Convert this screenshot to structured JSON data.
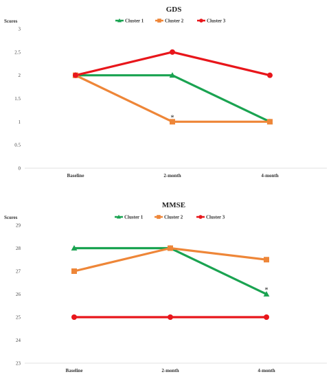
{
  "chart_data": [
    {
      "type": "line",
      "title": "GDS",
      "ylabel": "Scores",
      "xlabel": "",
      "categories": [
        "Baseline",
        "2-month",
        "4-month"
      ],
      "ylim": [
        0,
        3
      ],
      "yticks": [
        "0",
        "0.5",
        "1",
        "1.5",
        "2",
        "2.5",
        "3"
      ],
      "grid": false,
      "legend_position": "top",
      "series": [
        {
          "name": "Cluster 1",
          "values": [
            2,
            2,
            1
          ],
          "color": "#1aa351",
          "marker": "triangle"
        },
        {
          "name": "Cluster 2",
          "values": [
            2,
            1,
            1
          ],
          "color": "#ee8638",
          "marker": "square"
        },
        {
          "name": "Cluster 3",
          "values": [
            2,
            2.5,
            2
          ],
          "color": "#e8161b",
          "marker": "circle"
        }
      ],
      "annotations": [
        {
          "text": "*",
          "category": "2-month",
          "value": 1
        }
      ]
    },
    {
      "type": "line",
      "title": "MMSE",
      "ylabel": "Scores",
      "xlabel": "",
      "categories": [
        "Baseline",
        "2-month",
        "4-month"
      ],
      "ylim": [
        23,
        29
      ],
      "yticks": [
        "23",
        "24",
        "25",
        "26",
        "27",
        "28",
        "29"
      ],
      "grid": false,
      "legend_position": "top",
      "series": [
        {
          "name": "Cluster 1",
          "values": [
            28,
            28,
            26
          ],
          "color": "#1aa351",
          "marker": "triangle"
        },
        {
          "name": "Cluster 2",
          "values": [
            27,
            28,
            27.5
          ],
          "color": "#ee8638",
          "marker": "square"
        },
        {
          "name": "Cluster 3",
          "values": [
            25,
            25,
            25
          ],
          "color": "#e8161b",
          "marker": "circle"
        }
      ],
      "annotations": [
        {
          "text": "*",
          "category": "4-month",
          "value": 26
        }
      ]
    }
  ]
}
